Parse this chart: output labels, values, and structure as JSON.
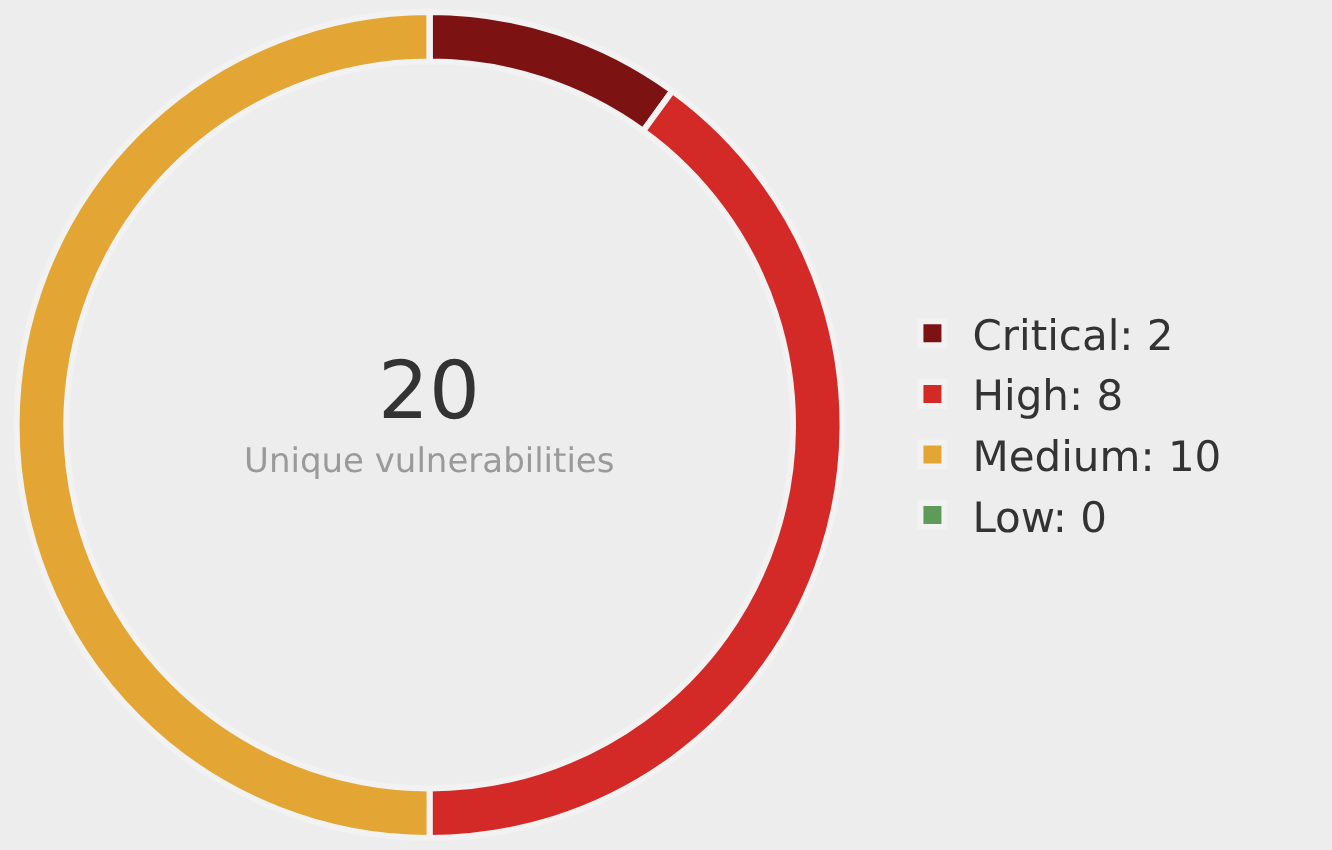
{
  "chart_data": {
    "type": "donut",
    "categories": [
      "Critical: 2",
      "High: 8",
      "Medium: 10",
      "Low: 0"
    ],
    "values": [
      2,
      8,
      10,
      0
    ],
    "colors": [
      "#7d1212",
      "#d42a27",
      "#e3a634",
      "#5e9a58"
    ],
    "legend": "right",
    "annotations": [
      "20",
      "Unique vulnerabilities"
    ]
  }
}
